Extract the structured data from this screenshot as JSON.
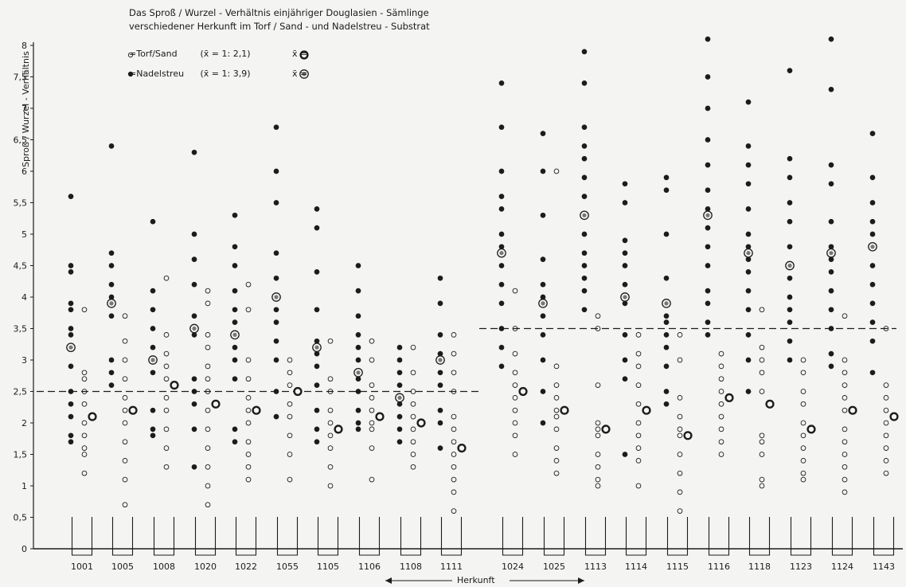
{
  "chart_data": {
    "type": "scatter",
    "title_lines": [
      "Das Sproß / Wurzel - Verhältnis einjähriger Douglasien - Sämlinge",
      "verschiedener Herkunft im Torf / Sand - und Nadelstreu - Substrat"
    ],
    "ylabel": "Sproß / Wurzel - Verhältnis",
    "xlabel": "Herkunft",
    "ylim": [
      0,
      8
    ],
    "yticks": [
      "0",
      "0,5",
      "1",
      "1,5",
      "2",
      "2,5",
      "3",
      "3,5",
      "4",
      "4,5",
      "5",
      "5,5",
      "6",
      "6,5",
      "7",
      "7,5",
      "8"
    ],
    "legend": {
      "torf": {
        "label": "=Torf/Sand",
        "mean_text": "(x̄ = 1: 2,1)",
        "mean_symbol": "x̄ ="
      },
      "nadel": {
        "label": "=Nadelstreu",
        "mean_text": "(x̄ = 1: 3,9)",
        "mean_symbol": "x̄ ="
      }
    },
    "reference_lines": [
      {
        "group": "left",
        "y": 2.5
      },
      {
        "group": "right",
        "y": 3.5
      }
    ],
    "categories": [
      "1001",
      "1005",
      "1008",
      "1020",
      "1022",
      "1055",
      "1105",
      "1106",
      "1108",
      "1111",
      "1024",
      "1025",
      "1113",
      "1114",
      "1115",
      "1116",
      "1118",
      "1123",
      "1124",
      "1143"
    ],
    "series": [
      {
        "name": "Nadelstreu",
        "values": [
          [
            1.7,
            1.8,
            2.1,
            2.3,
            2.5,
            2.9,
            3.2,
            3.4,
            3.5,
            3.8,
            3.9,
            4.4,
            4.5,
            5.6
          ],
          [
            2.6,
            2.8,
            3.0,
            3.7,
            3.9,
            4.0,
            4.2,
            4.5,
            4.7,
            6.4
          ],
          [
            1.8,
            1.9,
            2.2,
            2.8,
            3.0,
            3.2,
            3.5,
            3.8,
            4.1,
            5.2
          ],
          [
            1.3,
            1.9,
            2.3,
            2.5,
            2.7,
            3.4,
            3.5,
            3.7,
            4.2,
            4.6,
            5.0,
            6.3
          ],
          [
            1.7,
            1.9,
            2.7,
            3.0,
            3.2,
            3.6,
            3.8,
            4.1,
            4.5,
            4.8,
            5.3
          ],
          [
            2.1,
            2.5,
            3.0,
            3.3,
            3.6,
            3.8,
            4.0,
            4.3,
            4.7,
            5.5,
            6.0,
            6.7
          ],
          [
            1.7,
            1.9,
            2.2,
            2.6,
            2.9,
            3.1,
            3.3,
            3.8,
            4.4,
            5.1,
            5.4
          ],
          [
            1.9,
            2.0,
            2.2,
            2.5,
            2.7,
            3.0,
            3.2,
            3.4,
            3.7,
            4.1,
            4.5
          ],
          [
            1.7,
            1.9,
            2.1,
            2.3,
            2.4,
            2.6,
            2.8,
            3.0,
            3.2
          ],
          [
            1.6,
            2.0,
            2.2,
            2.6,
            2.8,
            3.1,
            3.4,
            3.9,
            4.3
          ],
          [
            2.9,
            3.2,
            3.5,
            3.9,
            4.2,
            4.5,
            4.8,
            5.0,
            5.4,
            5.6,
            6.0,
            6.7,
            7.4
          ],
          [
            2.0,
            2.5,
            3.0,
            3.4,
            3.7,
            4.0,
            4.2,
            4.6,
            5.3,
            6.0,
            6.6
          ],
          [
            3.8,
            4.1,
            4.3,
            4.5,
            4.7,
            5.0,
            5.3,
            5.6,
            5.9,
            6.2,
            6.4,
            6.7,
            7.4,
            7.9
          ],
          [
            1.5,
            2.7,
            3.0,
            3.4,
            3.9,
            4.2,
            4.5,
            4.7,
            4.9,
            5.5,
            5.8
          ],
          [
            2.3,
            2.5,
            2.9,
            3.2,
            3.4,
            3.6,
            3.7,
            3.9,
            4.3,
            5.0,
            5.7,
            5.9
          ],
          [
            3.4,
            3.6,
            3.9,
            4.1,
            4.5,
            4.8,
            5.1,
            5.4,
            5.7,
            6.1,
            6.5,
            7.0,
            7.5,
            8.1
          ],
          [
            2.5,
            3.0,
            3.4,
            3.8,
            4.1,
            4.4,
            4.6,
            4.8,
            5.0,
            5.4,
            5.8,
            6.1,
            6.4,
            7.1
          ],
          [
            3.0,
            3.3,
            3.6,
            3.8,
            4.0,
            4.3,
            4.5,
            4.8,
            5.2,
            5.5,
            5.9,
            6.2,
            7.6
          ],
          [
            2.9,
            3.1,
            3.5,
            3.8,
            4.1,
            4.4,
            4.6,
            4.8,
            5.2,
            5.8,
            6.1,
            7.3,
            8.1
          ],
          [
            2.8,
            3.3,
            3.6,
            3.9,
            4.2,
            4.5,
            4.8,
            5.0,
            5.2,
            5.5,
            5.9,
            6.6
          ]
        ]
      },
      {
        "name": "Torf/Sand",
        "values": [
          [
            1.2,
            1.5,
            1.6,
            1.8,
            2.0,
            2.3,
            2.5,
            2.7,
            2.8,
            3.8
          ],
          [
            0.7,
            1.1,
            1.4,
            1.7,
            2.0,
            2.2,
            2.4,
            2.7,
            3.0,
            3.3,
            3.7
          ],
          [
            1.3,
            1.6,
            1.9,
            2.2,
            2.4,
            2.7,
            2.9,
            3.1,
            3.4,
            4.3
          ],
          [
            0.7,
            1.0,
            1.3,
            1.6,
            1.9,
            2.2,
            2.5,
            2.7,
            2.9,
            3.2,
            3.4,
            3.9,
            4.1
          ],
          [
            1.1,
            1.3,
            1.5,
            1.7,
            2.0,
            2.2,
            2.4,
            2.7,
            3.0,
            3.8,
            4.2
          ],
          [
            1.1,
            1.5,
            1.8,
            2.1,
            2.3,
            2.6,
            2.8,
            3.0
          ],
          [
            1.0,
            1.3,
            1.6,
            1.8,
            2.0,
            2.2,
            2.5,
            2.7,
            3.3
          ],
          [
            1.1,
            1.6,
            1.9,
            2.0,
            2.2,
            2.4,
            2.6,
            3.0,
            3.3
          ],
          [
            1.3,
            1.5,
            1.7,
            1.9,
            2.1,
            2.3,
            2.5,
            2.8,
            3.2
          ],
          [
            0.6,
            0.9,
            1.1,
            1.3,
            1.5,
            1.7,
            1.9,
            2.1,
            2.5,
            2.8,
            3.1,
            3.4
          ],
          [
            1.5,
            1.8,
            2.0,
            2.2,
            2.4,
            2.6,
            2.8,
            3.1,
            3.5,
            4.1
          ],
          [
            1.2,
            1.4,
            1.6,
            1.9,
            2.1,
            2.2,
            2.4,
            2.6,
            2.9,
            6.0
          ],
          [
            1.0,
            1.1,
            1.3,
            1.5,
            1.8,
            1.9,
            2.0,
            2.6,
            3.5,
            3.7
          ],
          [
            1.0,
            1.4,
            1.6,
            1.8,
            2.0,
            2.3,
            2.6,
            2.9,
            3.1,
            3.4
          ],
          [
            0.6,
            0.9,
            1.2,
            1.5,
            1.8,
            1.9,
            2.1,
            2.4,
            3.0,
            3.4
          ],
          [
            1.5,
            1.7,
            1.9,
            2.1,
            2.3,
            2.5,
            2.7,
            2.9,
            3.1
          ],
          [
            1.0,
            1.1,
            1.5,
            1.7,
            1.8,
            2.5,
            2.8,
            3.0,
            3.2,
            3.8
          ],
          [
            1.1,
            1.2,
            1.4,
            1.6,
            1.8,
            2.0,
            2.3,
            2.5,
            2.8,
            3.0
          ],
          [
            0.9,
            1.1,
            1.3,
            1.5,
            1.7,
            1.9,
            2.2,
            2.4,
            2.6,
            2.8,
            3.0,
            3.7
          ],
          [
            1.2,
            1.4,
            1.6,
            1.8,
            2.0,
            2.2,
            2.4,
            2.6,
            3.5
          ]
        ]
      }
    ],
    "means": {
      "Torf/Sand": [
        2.1,
        2.2,
        2.6,
        2.3,
        2.2,
        2.5,
        1.9,
        2.1,
        2.0,
        1.6,
        2.5,
        2.2,
        1.9,
        2.2,
        1.8,
        2.4,
        2.3,
        1.9,
        2.2,
        2.1
      ],
      "Nadelstreu": [
        3.2,
        3.9,
        3.0,
        3.5,
        3.4,
        4.0,
        3.2,
        2.8,
        2.4,
        3.0,
        4.7,
        3.9,
        5.3,
        4.0,
        3.9,
        5.3,
        4.7,
        4.5,
        4.7,
        4.8
      ]
    }
  }
}
